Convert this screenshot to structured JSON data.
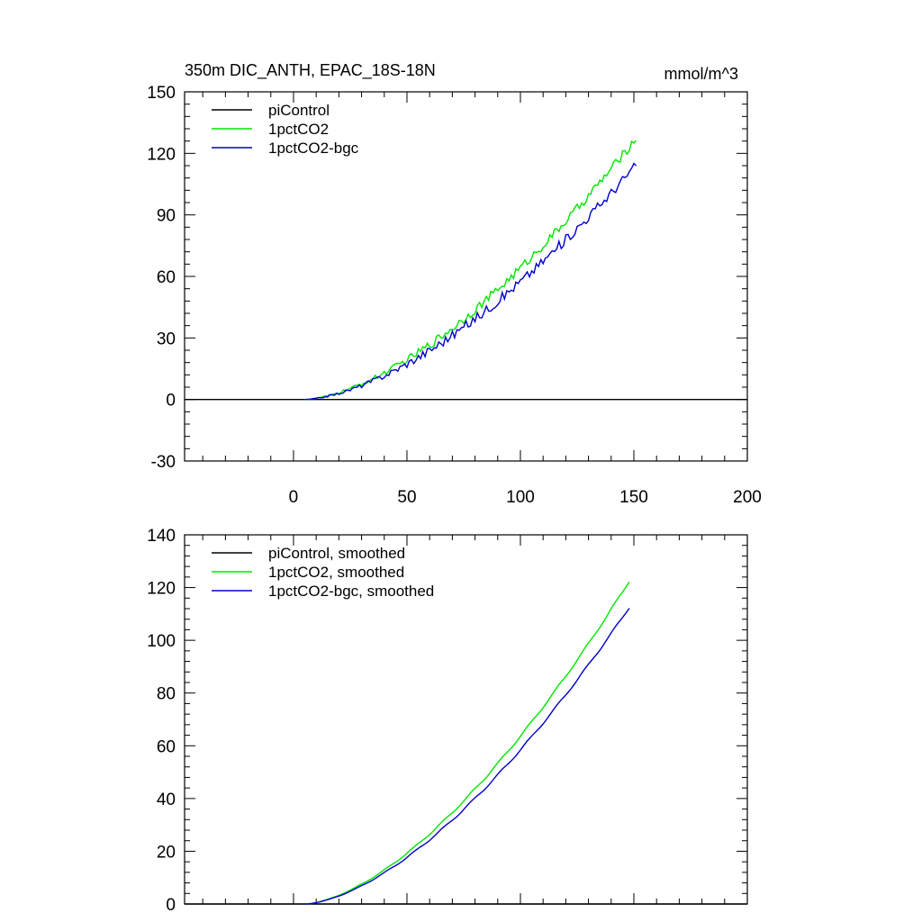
{
  "chart_data": [
    {
      "type": "line",
      "title": "350m DIC_ANTH, EPAC_18S-18N",
      "units": "mmol/m^3",
      "xlim": [
        -48,
        200
      ],
      "ylim": [
        -30,
        150
      ],
      "xticks": [
        "0",
        "50",
        "100",
        "150",
        "200"
      ],
      "yticks": [
        "-30",
        "0",
        "30",
        "60",
        "90",
        "120",
        "150"
      ],
      "legend_position": "top-left",
      "grid": false,
      "series": [
        {
          "name": "piControl",
          "color": "#000000",
          "kind": "flat",
          "x_range": [
            -48,
            200
          ],
          "value": 0
        },
        {
          "name": "1pctCO2",
          "color": "#00e600",
          "kind": "noisy",
          "x_range": [
            5,
            151
          ],
          "start": 5,
          "end": 150,
          "end_value": 126,
          "noise": 2.2
        },
        {
          "name": "1pctCO2-bgc",
          "color": "#0000cc",
          "kind": "noisy",
          "x_range": [
            5,
            151
          ],
          "start": 5,
          "end": 150,
          "end_value": 113,
          "noise": 2.4
        }
      ]
    },
    {
      "type": "line",
      "title": "",
      "xlim": [
        -48,
        200
      ],
      "ylim": [
        0,
        140
      ],
      "xticks": [],
      "yticks": [
        "0",
        "20",
        "40",
        "60",
        "80",
        "100",
        "120",
        "140"
      ],
      "legend_position": "top-left",
      "grid": false,
      "series": [
        {
          "name": "piControl, smoothed",
          "color": "#000000",
          "kind": "flat",
          "x_range": [
            -48,
            200
          ],
          "value": 0
        },
        {
          "name": "1pctCO2, smoothed",
          "color": "#00e600",
          "kind": "smooth",
          "x_range": [
            5,
            148
          ],
          "start": 5,
          "end": 148,
          "end_value": 122.5
        },
        {
          "name": "1pctCO2-bgc, smoothed",
          "color": "#0000cc",
          "kind": "smooth",
          "x_range": [
            5,
            148
          ],
          "start": 5,
          "end": 148,
          "end_value": 112.5
        }
      ]
    }
  ]
}
